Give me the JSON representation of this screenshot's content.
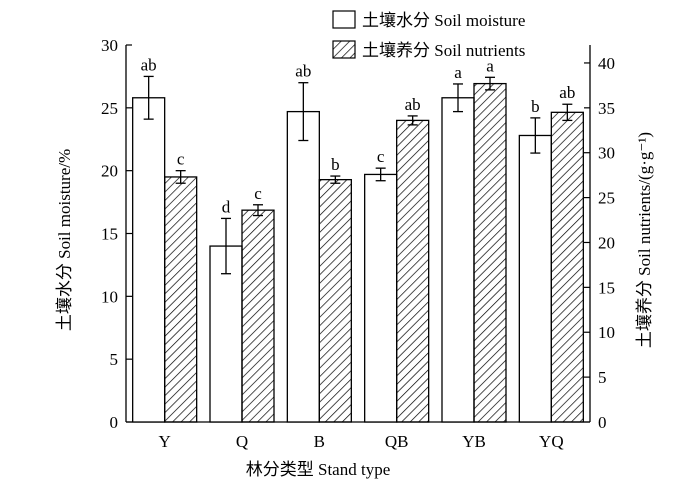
{
  "chart_data": {
    "type": "bar",
    "xlabel": "林分类型  Stand type",
    "ylabel_left": "土壤水分 Soil moisture/%",
    "ylabel_right": "土壤养分 Soil nutrients/(g·g⁻¹)",
    "categories": [
      "Y",
      "Q",
      "B",
      "QB",
      "YB",
      "YQ"
    ],
    "y_left": {
      "lim": [
        0,
        30
      ],
      "ticks": [
        0,
        5,
        10,
        15,
        20,
        25,
        30
      ]
    },
    "y_right": {
      "lim": [
        0,
        42
      ],
      "ticks": [
        0,
        5,
        10,
        15,
        20,
        25,
        30,
        35,
        40
      ]
    },
    "grid": false,
    "legend_position": "top-right",
    "series": [
      {
        "name": "土壤水分 Soil moisture",
        "axis": "left",
        "fill": "white",
        "values": [
          25.8,
          14.0,
          24.7,
          19.7,
          25.8,
          22.8
        ],
        "errors": [
          1.7,
          2.2,
          2.3,
          0.5,
          1.1,
          1.4
        ],
        "letters": [
          "ab",
          "d",
          "ab",
          "c",
          "a",
          "b"
        ]
      },
      {
        "name": "土壤养分 Soil nutrients",
        "axis": "right",
        "fill": "hatch",
        "values": [
          27.3,
          23.6,
          27.0,
          33.6,
          37.7,
          34.5
        ],
        "errors": [
          0.7,
          0.6,
          0.4,
          0.5,
          0.7,
          0.9
        ],
        "letters": [
          "c",
          "c",
          "b",
          "ab",
          "a",
          "ab"
        ]
      }
    ]
  }
}
